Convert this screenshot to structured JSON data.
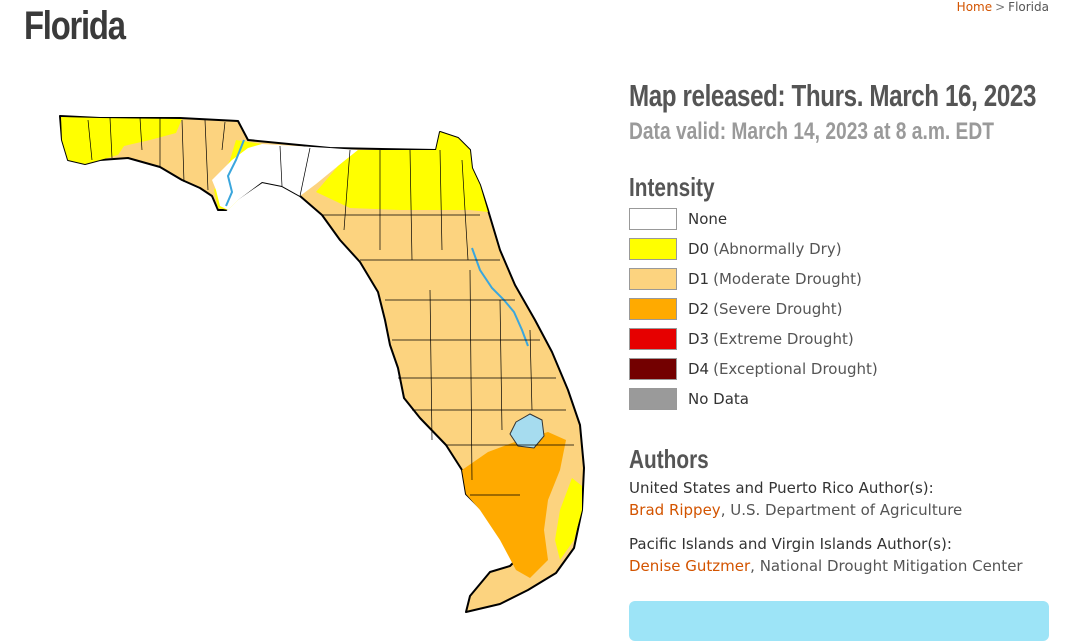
{
  "page": {
    "title": "Florida"
  },
  "breadcrumb": {
    "home": "Home",
    "separator": ">",
    "current": "Florida"
  },
  "map_info": {
    "released": "Map released: Thurs. March 16, 2023",
    "valid": "Data valid: March 14, 2023 at 8 a.m. EDT"
  },
  "intensity": {
    "heading": "Intensity",
    "items": [
      {
        "code": "None",
        "desc": "",
        "color": "#ffffff"
      },
      {
        "code": "D0",
        "desc": "(Abnormally Dry)",
        "color": "#ffff00"
      },
      {
        "code": "D1",
        "desc": "(Moderate Drought)",
        "color": "#fcd37f"
      },
      {
        "code": "D2",
        "desc": "(Severe Drought)",
        "color": "#ffaa00"
      },
      {
        "code": "D3",
        "desc": "(Extreme Drought)",
        "color": "#e60000"
      },
      {
        "code": "D4",
        "desc": "(Exceptional Drought)",
        "color": "#730000"
      },
      {
        "code": "No Data",
        "desc": "",
        "color": "#9a9a9a"
      }
    ]
  },
  "authors": {
    "heading": "Authors",
    "groups": [
      {
        "label": "United States and Puerto Rico Author(s):",
        "name": "Brad Rippey",
        "affiliation": ", U.S. Department of Agriculture"
      },
      {
        "label": "Pacific Islands and Virgin Islands Author(s):",
        "name": "Denise Gutzmer",
        "affiliation": ", National Drought Mitigation Center"
      }
    ]
  },
  "colors": {
    "accent_link": "#d35400",
    "water": "#a6dcef",
    "cta": "#9de4f7"
  }
}
